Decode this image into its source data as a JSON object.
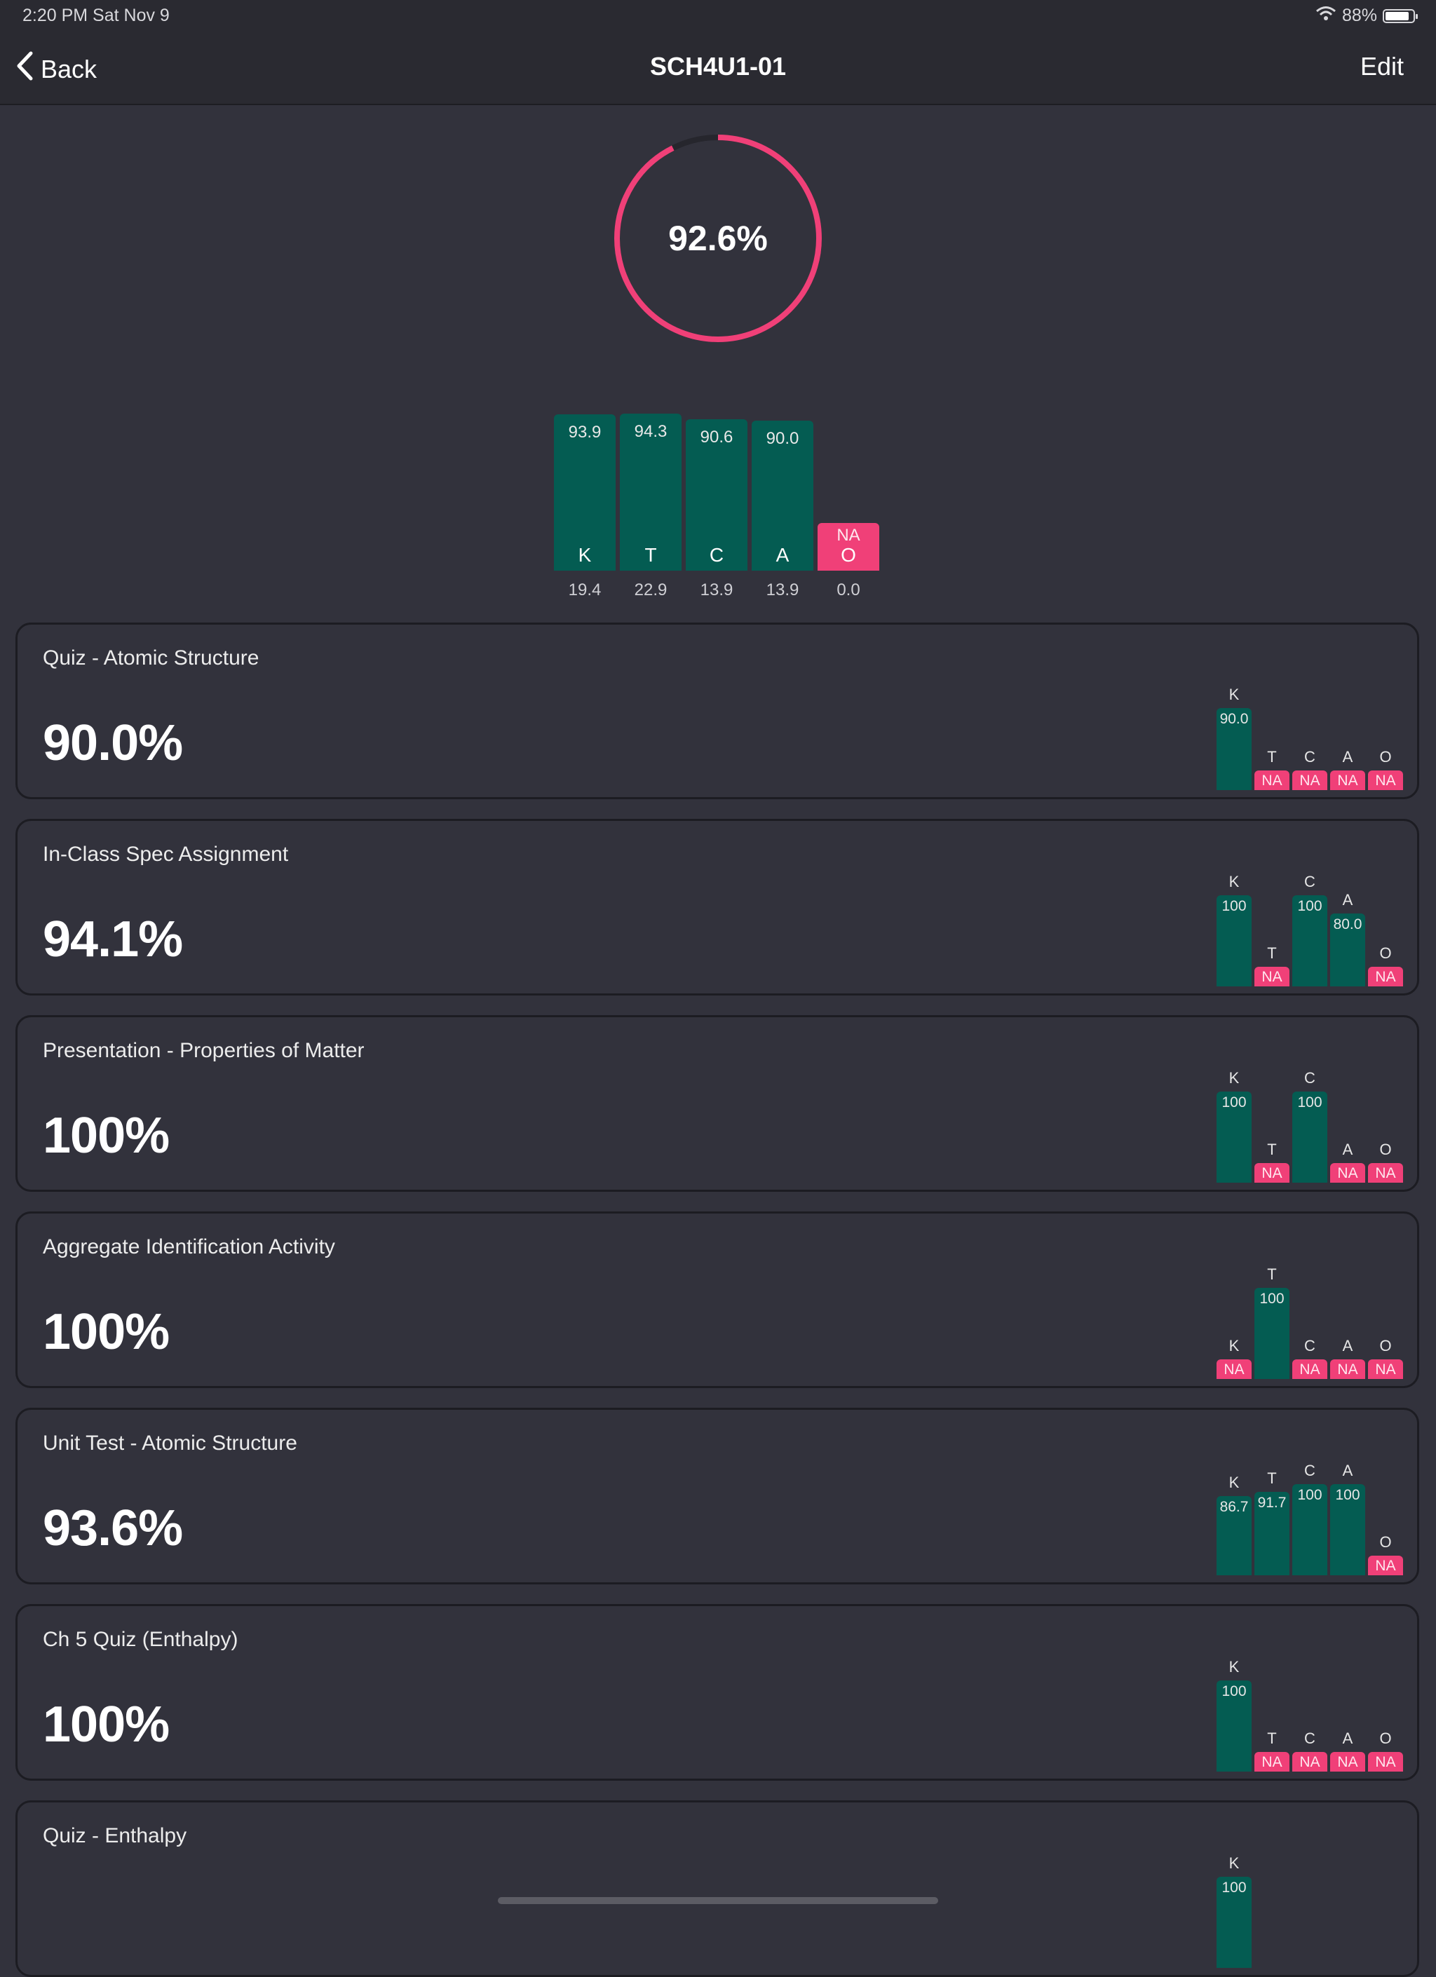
{
  "status_bar": {
    "time": "2:20 PM   Sat Nov 9",
    "battery": "88%",
    "battery_level": 0.88
  },
  "nav": {
    "back_label": "Back",
    "title": "SCH4U1-01",
    "edit_label": "Edit"
  },
  "overall": {
    "label": "92.6%",
    "value": 92.6,
    "ring_color": "#f04078"
  },
  "colors": {
    "bar": "#045c52",
    "na": "#f04078",
    "background": "#32323c"
  },
  "chart_data": {
    "type": "bar",
    "categories": [
      "K",
      "T",
      "C",
      "A",
      "O"
    ],
    "values": [
      93.9,
      94.3,
      90.6,
      90.0,
      null
    ],
    "value_labels": [
      "93.9",
      "94.3",
      "90.6",
      "90.0",
      "NA"
    ],
    "weights": [
      "19.4",
      "22.9",
      "13.9",
      "13.9",
      "0.0"
    ]
  },
  "assessments": [
    {
      "title": "Quiz - Atomic Structure",
      "score": "90.0%",
      "bars": [
        {
          "letter": "K",
          "value": 90.0,
          "label": "90.0"
        },
        {
          "letter": "T",
          "value": null,
          "label": "NA"
        },
        {
          "letter": "C",
          "value": null,
          "label": "NA"
        },
        {
          "letter": "A",
          "value": null,
          "label": "NA"
        },
        {
          "letter": "O",
          "value": null,
          "label": "NA"
        }
      ]
    },
    {
      "title": "In-Class Spec Assignment",
      "score": "94.1%",
      "bars": [
        {
          "letter": "K",
          "value": 100,
          "label": "100"
        },
        {
          "letter": "T",
          "value": null,
          "label": "NA"
        },
        {
          "letter": "C",
          "value": 100,
          "label": "100"
        },
        {
          "letter": "A",
          "value": 80.0,
          "label": "80.0"
        },
        {
          "letter": "O",
          "value": null,
          "label": "NA"
        }
      ]
    },
    {
      "title": "Presentation - Properties of Matter",
      "score": "100%",
      "bars": [
        {
          "letter": "K",
          "value": 100,
          "label": "100"
        },
        {
          "letter": "T",
          "value": null,
          "label": "NA"
        },
        {
          "letter": "C",
          "value": 100,
          "label": "100"
        },
        {
          "letter": "A",
          "value": null,
          "label": "NA"
        },
        {
          "letter": "O",
          "value": null,
          "label": "NA"
        }
      ]
    },
    {
      "title": "Aggregate Identification Activity",
      "score": "100%",
      "bars": [
        {
          "letter": "K",
          "value": null,
          "label": "NA"
        },
        {
          "letter": "T",
          "value": 100,
          "label": "100"
        },
        {
          "letter": "C",
          "value": null,
          "label": "NA"
        },
        {
          "letter": "A",
          "value": null,
          "label": "NA"
        },
        {
          "letter": "O",
          "value": null,
          "label": "NA"
        }
      ]
    },
    {
      "title": "Unit Test - Atomic Structure",
      "score": "93.6%",
      "bars": [
        {
          "letter": "K",
          "value": 86.7,
          "label": "86.7"
        },
        {
          "letter": "T",
          "value": 91.7,
          "label": "91.7"
        },
        {
          "letter": "C",
          "value": 100,
          "label": "100"
        },
        {
          "letter": "A",
          "value": 100,
          "label": "100"
        },
        {
          "letter": "O",
          "value": null,
          "label": "NA"
        }
      ]
    },
    {
      "title": "Ch 5 Quiz (Enthalpy)",
      "score": "100%",
      "bars": [
        {
          "letter": "K",
          "value": 100,
          "label": "100"
        },
        {
          "letter": "T",
          "value": null,
          "label": "NA"
        },
        {
          "letter": "C",
          "value": null,
          "label": "NA"
        },
        {
          "letter": "A",
          "value": null,
          "label": "NA"
        },
        {
          "letter": "O",
          "value": null,
          "label": "NA"
        }
      ]
    },
    {
      "title": "Quiz - Enthalpy",
      "score": "",
      "bars": [
        {
          "letter": "K",
          "value": 100,
          "label": "100"
        }
      ]
    }
  ]
}
